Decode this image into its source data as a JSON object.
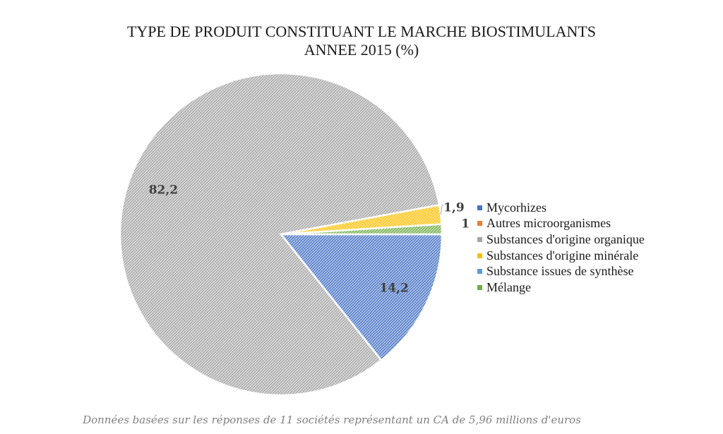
{
  "chart_data": {
    "type": "pie",
    "title_line1": "TYPE DE PRODUIT CONSTITUANT LE MARCHE BIOSTIMULANTS",
    "title_line2": "ANNEE 2015 (%)",
    "slices": [
      {
        "name": "Mycorhizes",
        "value": 14.2,
        "label": "14,2",
        "color": "#4472c4"
      },
      {
        "name": "Autres microorganismes",
        "value": 0,
        "label": "",
        "color": "#ed7d31"
      },
      {
        "name": "Substances d'origine organique",
        "value": 82.2,
        "label": "82,2",
        "color": "#a5a5a5"
      },
      {
        "name": "Substances d'origine minérale",
        "value": 1.9,
        "label": "1,9",
        "color": "#ffc000"
      },
      {
        "name": "Substance issues de synthèse",
        "value": 0,
        "label": "",
        "color": "#5b9bd5"
      },
      {
        "name": "Mélange",
        "value": 1,
        "label": "1",
        "color": "#70ad47"
      }
    ],
    "legend_position": "right",
    "footnote": "Données basées sur les réponses de 11 sociétés représentant un CA de 5,96 millions d'euros"
  }
}
